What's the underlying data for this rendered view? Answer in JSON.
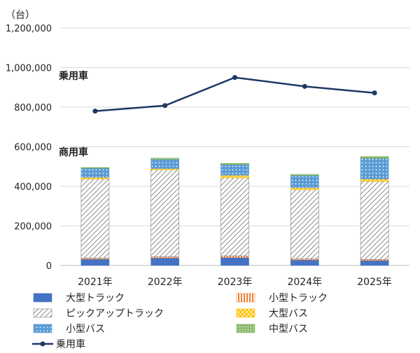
{
  "chart_data": {
    "type": "bar",
    "stacked": true,
    "unit_label": "（台）",
    "categories": [
      "2021年",
      "2022年",
      "2023年",
      "2024年",
      "2025年"
    ],
    "ylim": [
      0,
      1200000
    ],
    "yticks": [
      0,
      200000,
      400000,
      600000,
      800000,
      1000000,
      1200000
    ],
    "ytick_labels": [
      "0",
      "200,000",
      "400,000",
      "600,000",
      "800,000",
      "1,000,000",
      "1,200,000"
    ],
    "grid": true,
    "series": [
      {
        "name": "大型トラック",
        "kind": "bar",
        "color": "#4472C4",
        "pattern": "solid",
        "values": [
          32000,
          38000,
          40000,
          28000,
          25000
        ]
      },
      {
        "name": "小型トラック",
        "kind": "bar",
        "color": "#ED7D31",
        "pattern": "vertical-stripes",
        "values": [
          5000,
          6000,
          8000,
          5000,
          5000
        ]
      },
      {
        "name": "ピックアップトラック",
        "kind": "bar",
        "color": "#7F7F7F",
        "pattern": "diagonal-hatch",
        "values": [
          400000,
          440000,
          395000,
          350000,
          395000
        ]
      },
      {
        "name": "大型バス",
        "kind": "bar",
        "color": "#FFC000",
        "pattern": "checker",
        "values": [
          8000,
          6000,
          13000,
          10000,
          12000
        ]
      },
      {
        "name": "小型バス",
        "kind": "bar",
        "color": "#5B9BD5",
        "pattern": "dots",
        "values": [
          47000,
          47000,
          55000,
          62000,
          105000
        ]
      },
      {
        "name": "中型バス",
        "kind": "bar",
        "color": "#70AD47",
        "pattern": "grid",
        "values": [
          3000,
          5000,
          5000,
          5000,
          8000
        ]
      },
      {
        "name": "乗用車",
        "kind": "line",
        "color": "#1F3864",
        "values": [
          780000,
          808000,
          950000,
          905000,
          872000
        ]
      }
    ],
    "annotations": [
      "乗用車",
      "商用車"
    ],
    "legend_position": "bottom"
  }
}
